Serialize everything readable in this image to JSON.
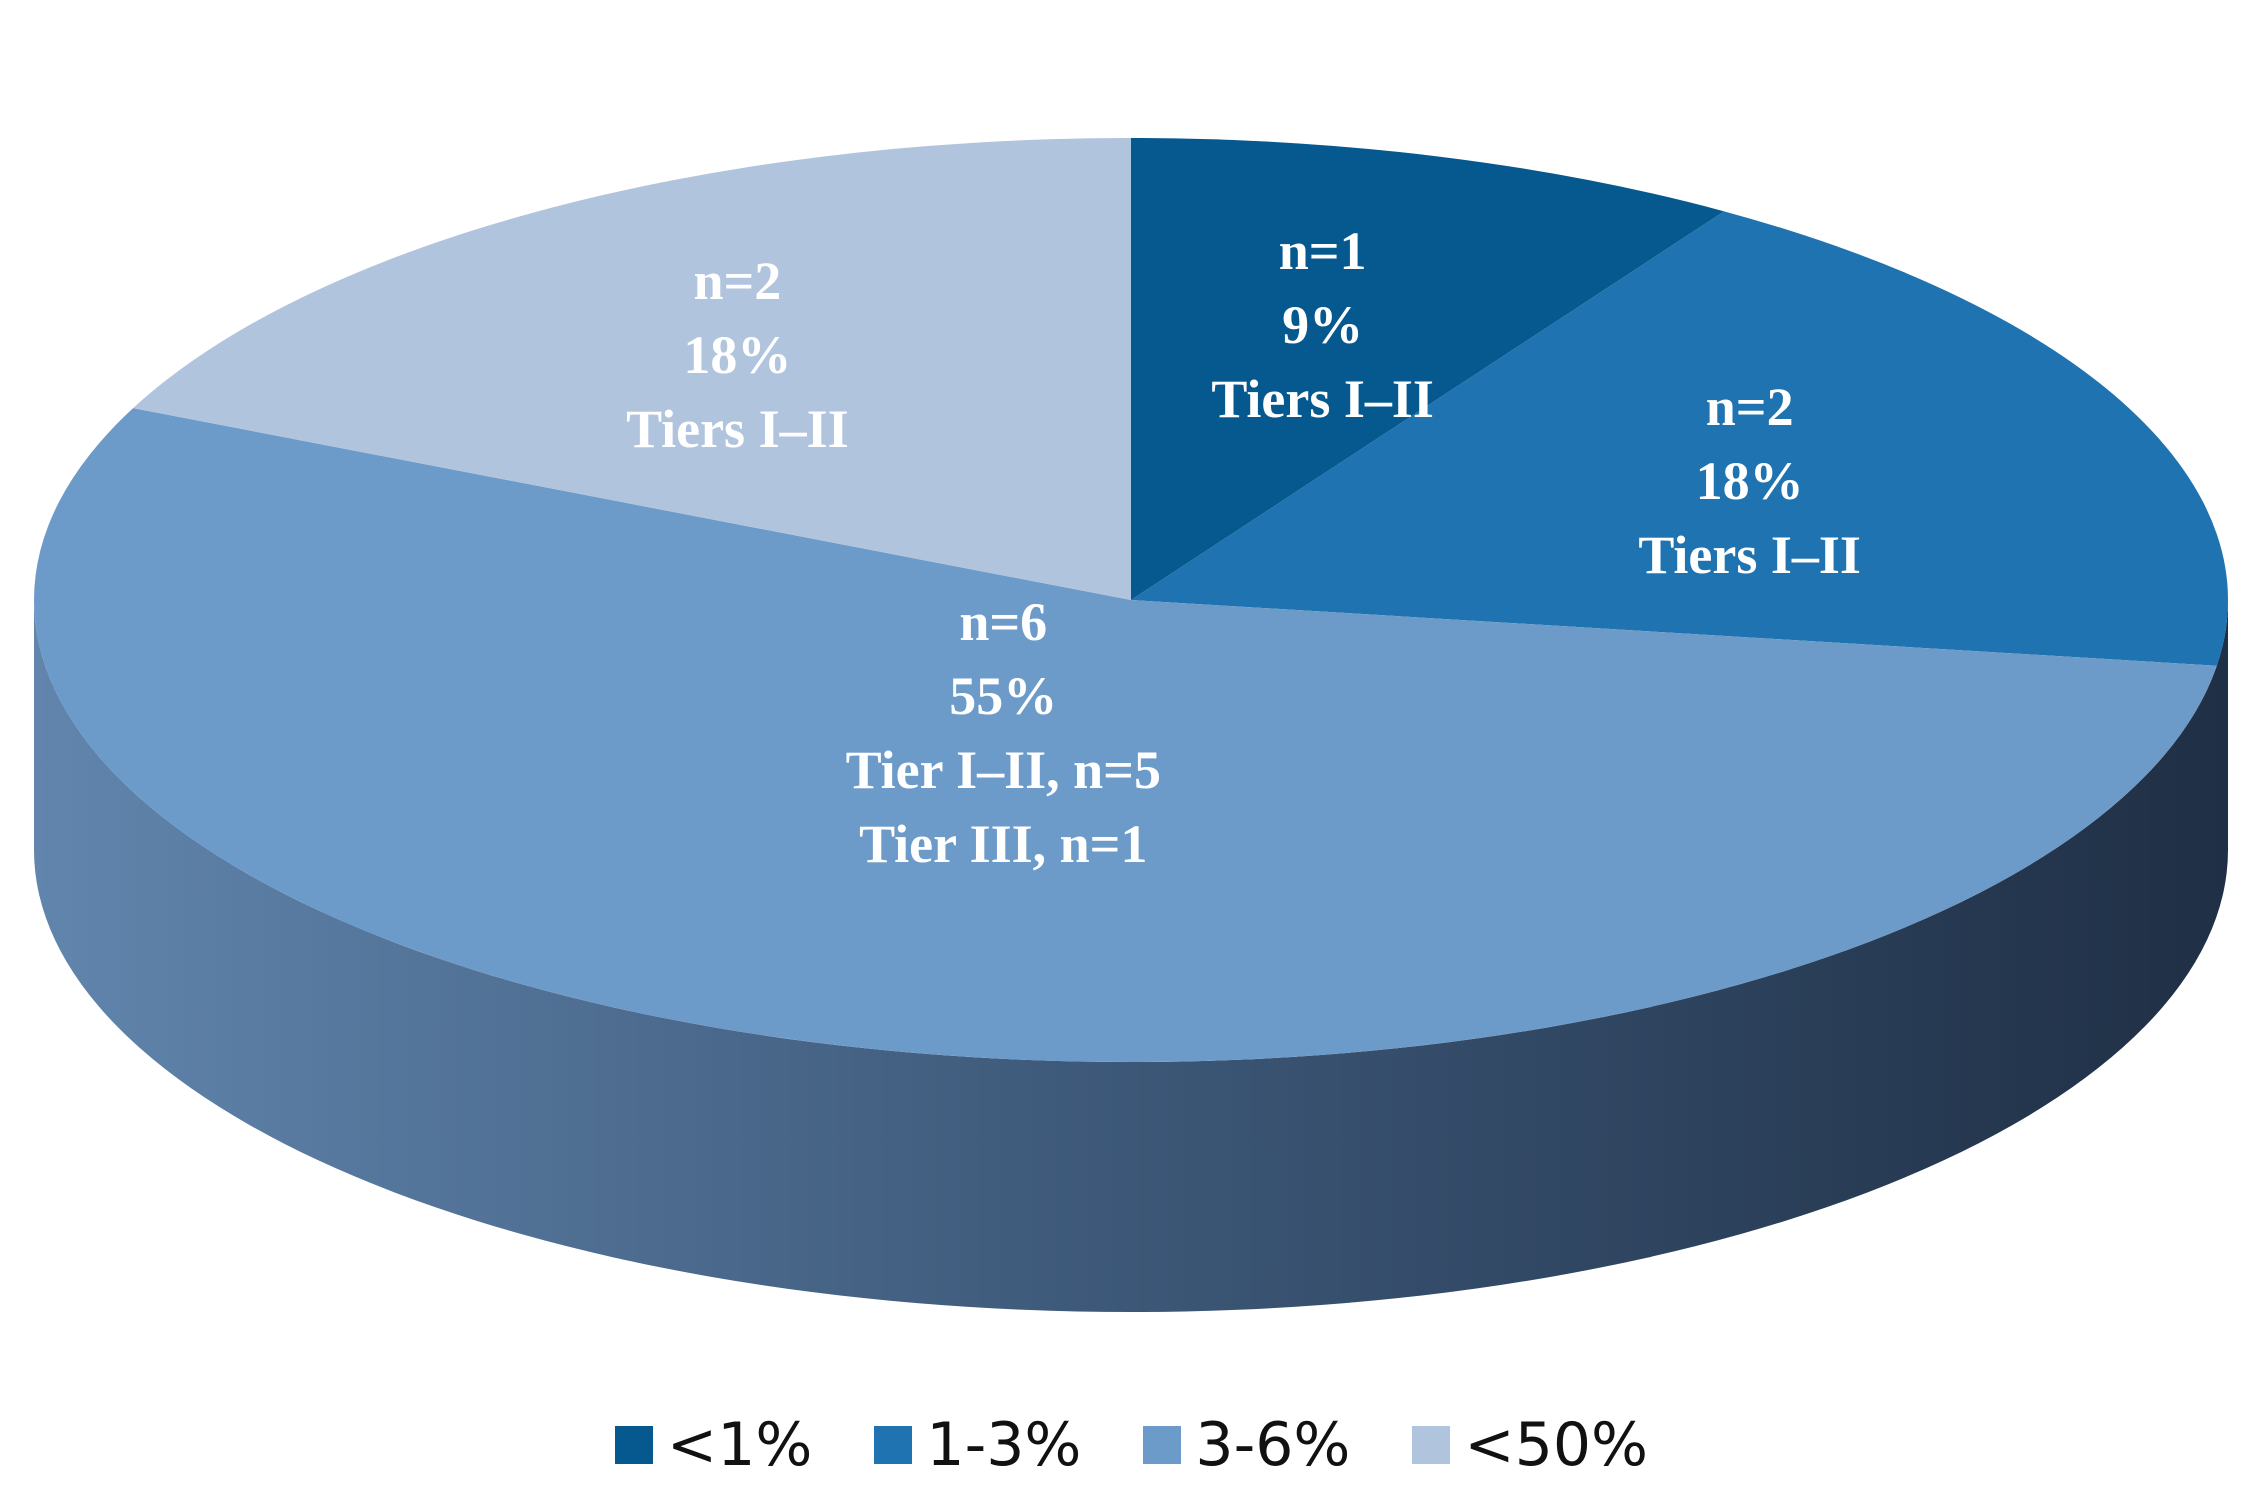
{
  "chart_data": {
    "type": "pie",
    "three_d": true,
    "legend_position": "bottom",
    "slices": [
      {
        "legend": "<1%",
        "value": 1,
        "lines": [
          "n=1",
          "9%",
          "Tiers I–II"
        ],
        "color": "#06598f"
      },
      {
        "legend": "1-3%",
        "value": 2,
        "lines": [
          "n=2",
          "18%",
          "Tiers I–II"
        ],
        "color": "#1f73b0"
      },
      {
        "legend": "3-6%",
        "value": 6,
        "lines": [
          "n=6",
          "55%",
          "Tier I–II, n=5",
          "Tier III, n=1"
        ],
        "color": "#6d9bc9"
      },
      {
        "legend": "<50%",
        "value": 2,
        "lines": [
          "n=2",
          "18%",
          "Tiers I–II"
        ],
        "color": "#b1c4de"
      }
    ]
  }
}
